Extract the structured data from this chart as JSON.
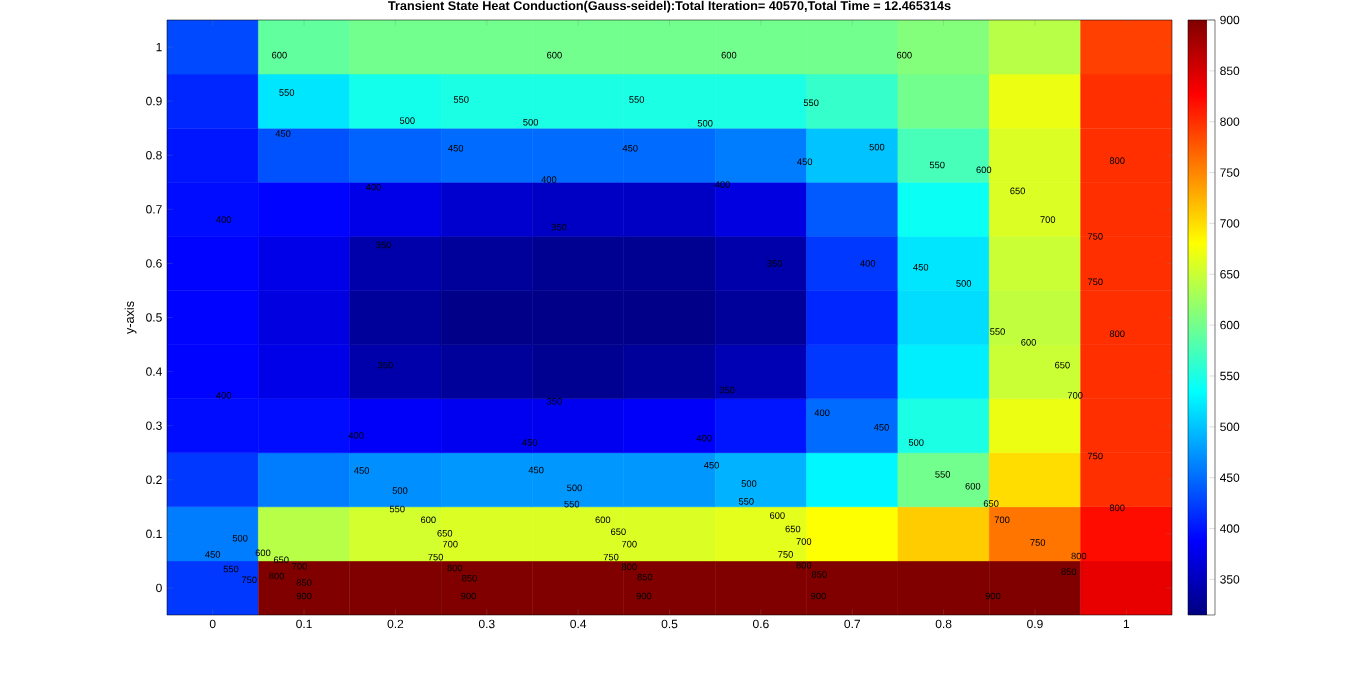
{
  "chart_data": {
    "type": "heatmap",
    "title": "Transient State Heat Conduction(Gauss-seidel):Total Iteration= 40570,Total Time = 12.465314s",
    "ylabel": "y-axis",
    "categories": [
      "0",
      "0.1",
      "0.2",
      "0.3",
      "0.4",
      "0.5",
      "0.6",
      "0.7",
      "0.8",
      "0.9",
      "1"
    ],
    "y_categories": [
      "1",
      "0.9",
      "0.8",
      "0.7",
      "0.6",
      "0.5",
      "0.4",
      "0.3",
      "0.2",
      "0.1",
      "0"
    ],
    "cells": [
      [
        430,
        590,
        600,
        600,
        600,
        600,
        600,
        600,
        610,
        640,
        790
      ],
      [
        410,
        520,
        545,
        550,
        550,
        550,
        550,
        565,
        600,
        670,
        800
      ],
      [
        400,
        435,
        445,
        450,
        450,
        450,
        460,
        500,
        575,
        660,
        800
      ],
      [
        395,
        390,
        375,
        360,
        355,
        355,
        370,
        440,
        540,
        660,
        800
      ],
      [
        390,
        375,
        340,
        330,
        325,
        325,
        340,
        420,
        520,
        650,
        800
      ],
      [
        390,
        370,
        330,
        320,
        320,
        320,
        330,
        410,
        515,
        645,
        800
      ],
      [
        390,
        375,
        340,
        330,
        325,
        330,
        345,
        420,
        525,
        650,
        800
      ],
      [
        395,
        395,
        385,
        380,
        380,
        385,
        400,
        450,
        550,
        670,
        800
      ],
      [
        420,
        460,
        470,
        475,
        475,
        475,
        490,
        530,
        600,
        700,
        800
      ],
      [
        460,
        640,
        655,
        660,
        660,
        660,
        665,
        680,
        710,
        760,
        820
      ],
      [
        420,
        900,
        900,
        900,
        900,
        900,
        900,
        900,
        900,
        900,
        840
      ]
    ],
    "clim": [
      315,
      900
    ],
    "cticks": [
      350,
      400,
      450,
      500,
      550,
      600,
      650,
      700,
      750,
      800,
      850,
      900
    ],
    "annotations": [
      "600",
      "600",
      "600",
      "600",
      "550",
      "550",
      "550",
      "550",
      "500",
      "500",
      "500",
      "500",
      "450",
      "450",
      "450",
      "450",
      "550",
      "600",
      "650",
      "700",
      "750",
      "800",
      "400",
      "400",
      "400",
      "400",
      "350",
      "350",
      "350",
      "400",
      "450",
      "500",
      "550",
      "600",
      "650",
      "700",
      "750",
      "800",
      "350",
      "400",
      "350",
      "350",
      "400",
      "450",
      "500",
      "550",
      "600",
      "650",
      "700",
      "750",
      "800",
      "400",
      "450",
      "400",
      "450",
      "450",
      "450",
      "500",
      "500",
      "500",
      "550",
      "550",
      "550",
      "600",
      "600",
      "600",
      "650",
      "650",
      "650",
      "700",
      "700",
      "700",
      "750",
      "750",
      "750",
      "750",
      "800",
      "800",
      "800",
      "800",
      "850",
      "850",
      "850",
      "850",
      "900",
      "900",
      "900",
      "900",
      "450",
      "500",
      "550",
      "600",
      "650",
      "700",
      "750",
      "800",
      "850",
      "900"
    ]
  }
}
